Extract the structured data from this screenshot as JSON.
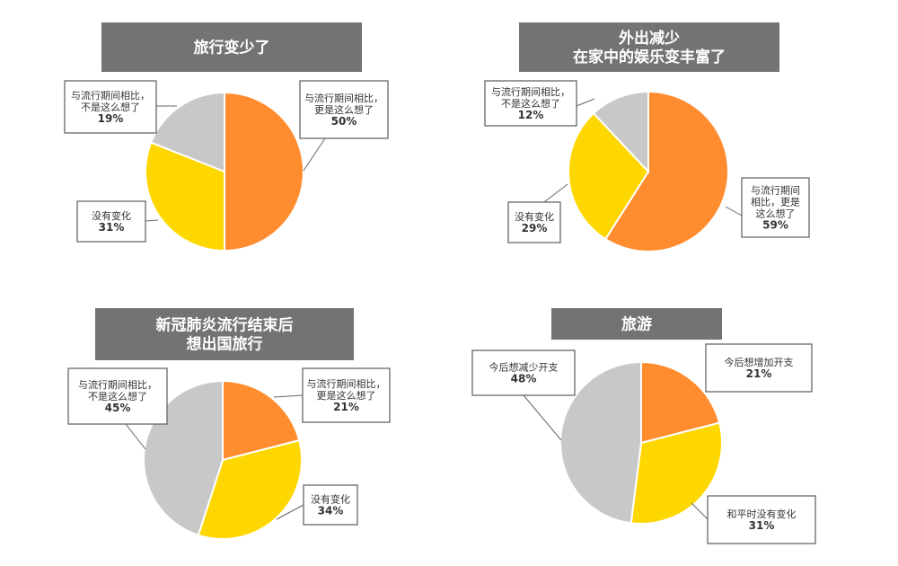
{
  "colors": {
    "orange": "#FF8C2E",
    "yellow": "#FFD700",
    "gray": "#C8C8C8",
    "title_bg": "#737373"
  },
  "chart_data": [
    {
      "type": "pie",
      "title": [
        "旅行变少了"
      ],
      "slices": [
        {
          "label": [
            "与流行期间相比，",
            "更是这么想了"
          ],
          "value": 50,
          "pct_text": "50%",
          "color": "orange"
        },
        {
          "label": [
            "没有变化"
          ],
          "value": 31,
          "pct_text": "31%",
          "color": "yellow"
        },
        {
          "label": [
            "与流行期间相比，",
            "不是这么想了"
          ],
          "value": 19,
          "pct_text": "19%",
          "color": "gray"
        }
      ]
    },
    {
      "type": "pie",
      "title": [
        "外出减少",
        "在家中的娱乐变丰富了"
      ],
      "slices": [
        {
          "label": [
            "与流行期间",
            "相比，更是",
            "这么想了"
          ],
          "value": 59,
          "pct_text": "59%",
          "color": "orange"
        },
        {
          "label": [
            "没有变化"
          ],
          "value": 29,
          "pct_text": "29%",
          "color": "yellow"
        },
        {
          "label": [
            "与流行期间相比，",
            "不是这么想了"
          ],
          "value": 12,
          "pct_text": "12%",
          "color": "gray"
        }
      ]
    },
    {
      "type": "pie",
      "title": [
        "新冠肺炎流行结束后",
        "想出国旅行"
      ],
      "slices": [
        {
          "label": [
            "与流行期间相比，",
            "更是这么想了"
          ],
          "value": 21,
          "pct_text": "21%",
          "color": "orange"
        },
        {
          "label": [
            "没有变化"
          ],
          "value": 34,
          "pct_text": "34%",
          "color": "yellow"
        },
        {
          "label": [
            "与流行期间相比，",
            "不是这么想了"
          ],
          "value": 45,
          "pct_text": "45%",
          "color": "gray"
        }
      ]
    },
    {
      "type": "pie",
      "title": [
        "旅游"
      ],
      "slices": [
        {
          "label": [
            "今后想增加开支"
          ],
          "value": 21,
          "pct_text": "21%",
          "color": "orange"
        },
        {
          "label": [
            "和平时没有变化"
          ],
          "value": 31,
          "pct_text": "31%",
          "color": "yellow"
        },
        {
          "label": [
            "今后想减少开支"
          ],
          "value": 48,
          "pct_text": "48%",
          "color": "gray"
        }
      ]
    }
  ]
}
